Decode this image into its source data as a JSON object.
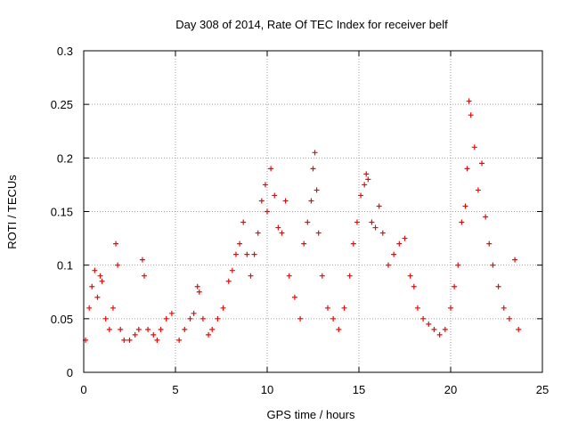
{
  "chart_data": {
    "type": "scatter",
    "title": "Day 308 of 2014, Rate Of TEC Index for receiver belf",
    "xlabel": "GPS time / hours",
    "ylabel": "ROTI / TECUs",
    "xlim": [
      0,
      25
    ],
    "ylim": [
      0,
      0.3
    ],
    "x_ticks": [
      0,
      5,
      10,
      15,
      20,
      25
    ],
    "x_tick_labels": [
      "0",
      "5",
      "10",
      "15",
      "20",
      "25"
    ],
    "y_ticks": [
      0,
      0.05,
      0.1,
      0.15,
      0.2,
      0.25,
      0.3
    ],
    "y_tick_labels": [
      "0",
      "0.05",
      "0.1",
      "0.15",
      "0.2",
      "0.25",
      "0.3"
    ],
    "grid": true,
    "marker": "+",
    "series": [
      {
        "name": "ROTI",
        "color": "#ff0000",
        "x": [
          0.1,
          0.3,
          0.45,
          0.6,
          0.75,
          0.9,
          1.0,
          1.2,
          1.4,
          1.6,
          1.75,
          1.85,
          2.0,
          2.2,
          2.5,
          2.8,
          3.0,
          3.2,
          3.3,
          3.5,
          3.8,
          4.0,
          4.2,
          4.5,
          4.8,
          5.2,
          5.5,
          5.8,
          6.0,
          6.2,
          6.3,
          6.5,
          6.8,
          7.0,
          7.3,
          7.6,
          7.9,
          8.1,
          8.3,
          8.5,
          8.7,
          8.9,
          9.1,
          9.3,
          9.5,
          9.7,
          9.9,
          10.0,
          10.2,
          10.4,
          10.6,
          10.8,
          11.0,
          11.2,
          11.5,
          11.8,
          12.0,
          12.2,
          12.4,
          12.5,
          12.6,
          12.7,
          12.8,
          13.0,
          13.3,
          13.6,
          13.9,
          14.2,
          14.5,
          14.7,
          14.9,
          15.1,
          15.3,
          15.4,
          15.5,
          15.7,
          15.9,
          16.1,
          16.3,
          16.6,
          16.9,
          17.2,
          17.5,
          17.8,
          18.0,
          18.2,
          18.5,
          18.8,
          19.1,
          19.4,
          19.7,
          20.0,
          20.2,
          20.4,
          20.6,
          20.8,
          20.9,
          21.0,
          21.1,
          21.3,
          21.5,
          21.7,
          21.9,
          22.1,
          22.3,
          22.6,
          22.9,
          23.2,
          23.5,
          23.7
        ],
        "y": [
          0.03,
          0.06,
          0.08,
          0.095,
          0.07,
          0.09,
          0.085,
          0.05,
          0.04,
          0.06,
          0.12,
          0.1,
          0.04,
          0.03,
          0.03,
          0.035,
          0.04,
          0.105,
          0.09,
          0.04,
          0.035,
          0.03,
          0.04,
          0.05,
          0.055,
          0.03,
          0.04,
          0.05,
          0.055,
          0.08,
          0.075,
          0.05,
          0.035,
          0.04,
          0.05,
          0.06,
          0.085,
          0.095,
          0.11,
          0.12,
          0.14,
          0.11,
          0.09,
          0.11,
          0.13,
          0.16,
          0.175,
          0.15,
          0.19,
          0.165,
          0.135,
          0.13,
          0.16,
          0.09,
          0.07,
          0.05,
          0.12,
          0.14,
          0.16,
          0.19,
          0.205,
          0.17,
          0.13,
          0.09,
          0.06,
          0.05,
          0.04,
          0.06,
          0.09,
          0.12,
          0.14,
          0.165,
          0.175,
          0.185,
          0.18,
          0.14,
          0.135,
          0.155,
          0.13,
          0.1,
          0.11,
          0.12,
          0.125,
          0.09,
          0.08,
          0.06,
          0.05,
          0.045,
          0.04,
          0.035,
          0.04,
          0.06,
          0.08,
          0.1,
          0.14,
          0.155,
          0.19,
          0.253,
          0.24,
          0.21,
          0.17,
          0.195,
          0.145,
          0.12,
          0.1,
          0.08,
          0.06,
          0.05,
          0.105,
          0.04
        ]
      }
    ]
  }
}
